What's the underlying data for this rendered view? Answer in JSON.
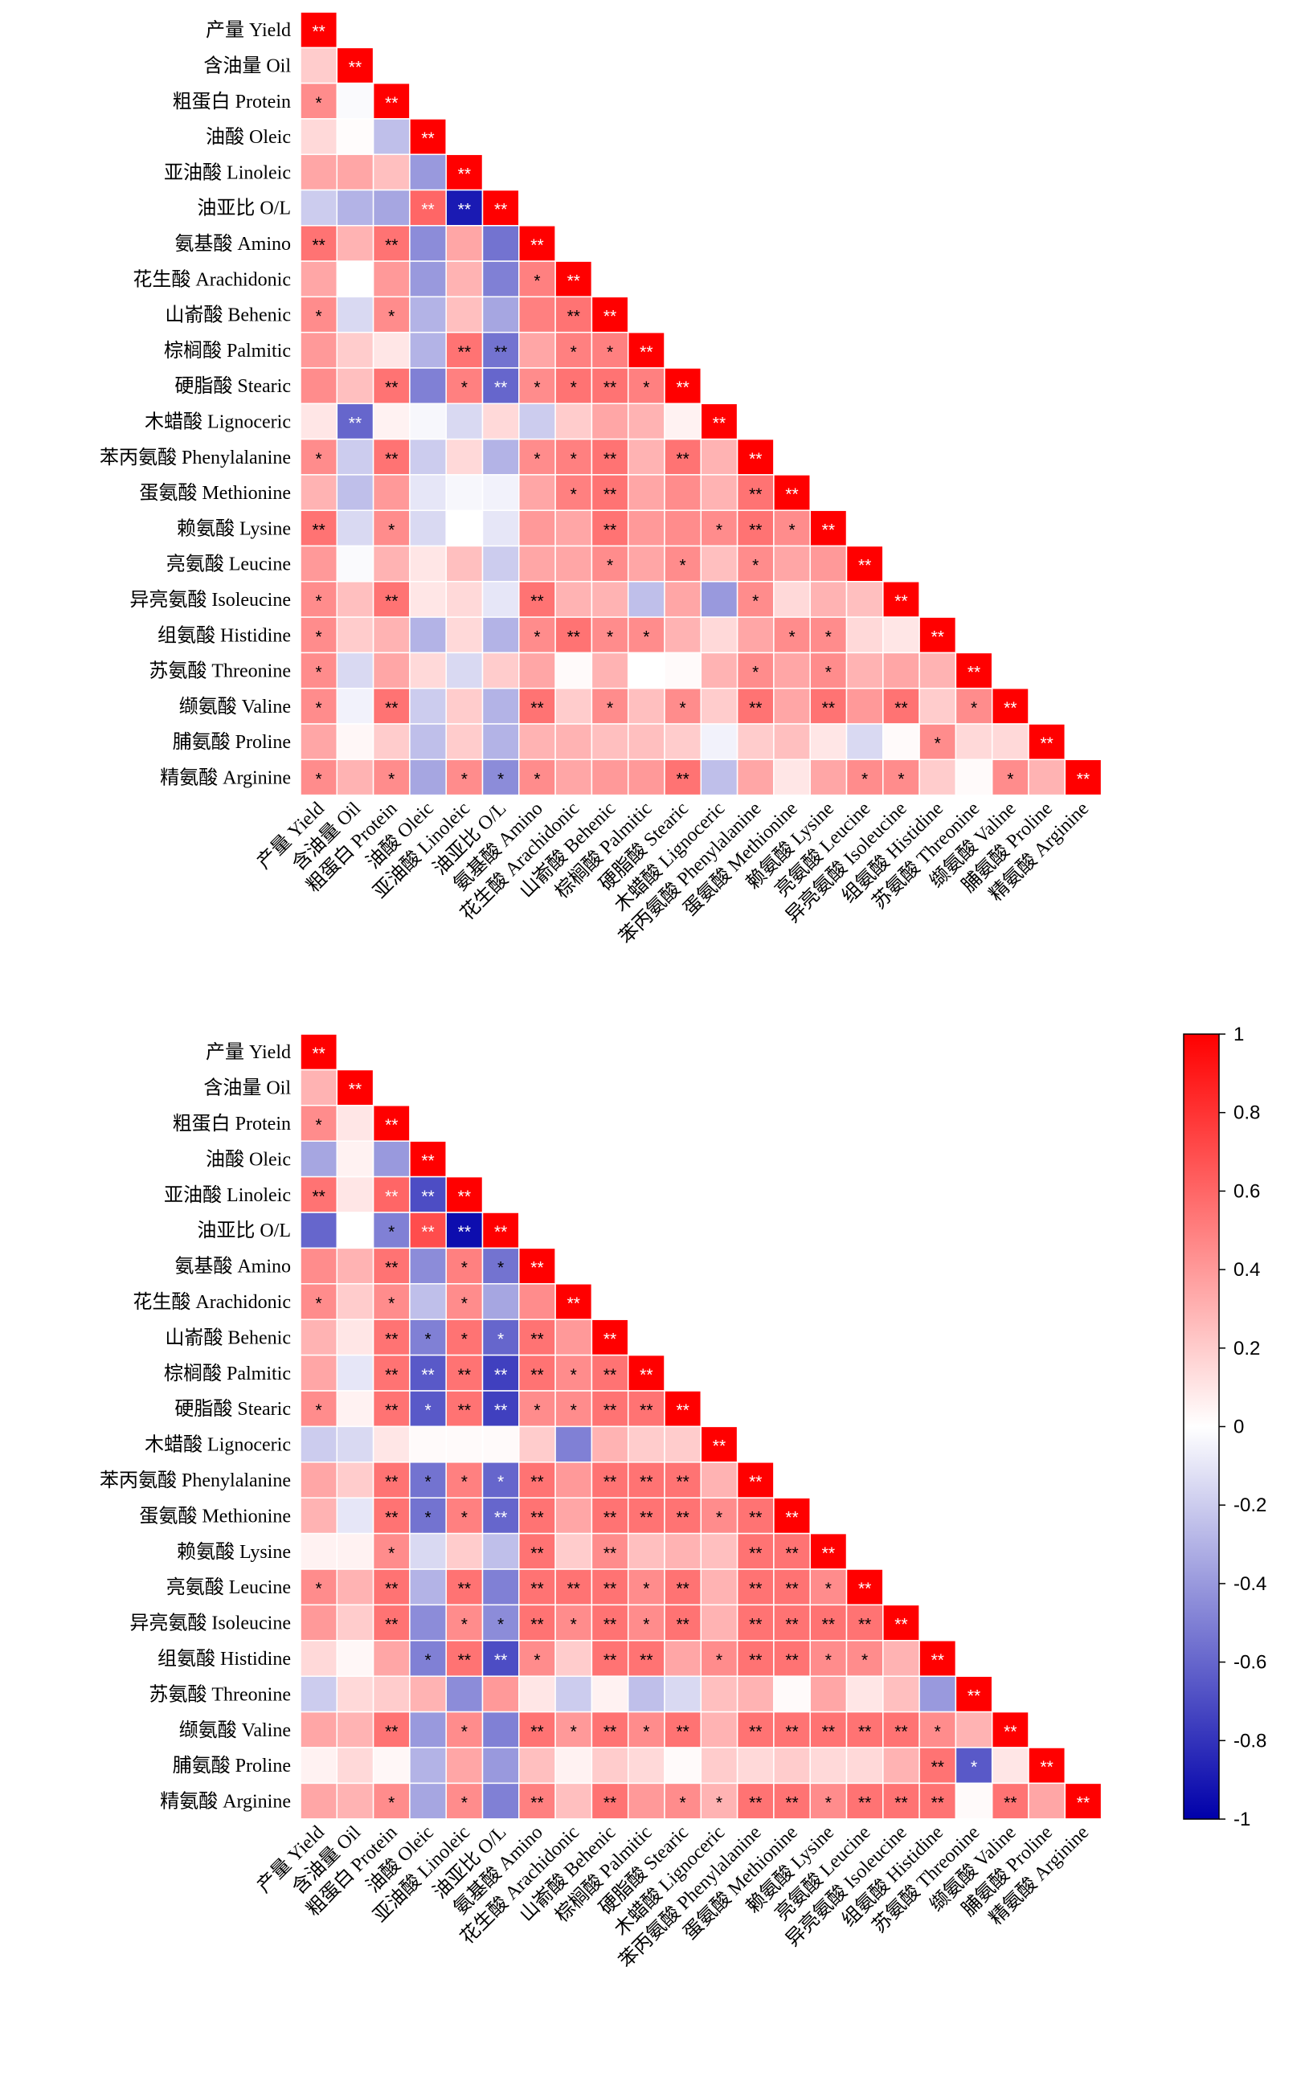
{
  "chart_data": [
    {
      "type": "heatmap",
      "variables": [
        "产量 Yield",
        "含油量 Oil",
        "粗蛋白 Protein",
        "油酸 Oleic",
        "亚油酸 Linoleic",
        "油亚比 O/L",
        "氨基酸 Amino",
        "花生酸 Arachidonic",
        "山嵛酸 Behenic",
        "棕榈酸 Palmitic",
        "硬脂酸 Stearic",
        "木蜡酸 Lignoceric",
        "苯丙氨酸 Phenylalanine",
        "蛋氨酸 Methionine",
        "赖氨酸 Lysine",
        "亮氨酸 Leucine",
        "异亮氨酸 Isoleucine",
        "组氨酸 Histidine",
        "苏氨酸 Threonine",
        "缬氨酸 Valine",
        "脯氨酸 Proline",
        "精氨酸 Arginine"
      ],
      "values": [
        [
          1
        ],
        [
          0.2,
          1
        ],
        [
          0.45,
          -0.02,
          1
        ],
        [
          0.15,
          0.01,
          -0.25,
          1
        ],
        [
          0.35,
          0.35,
          0.25,
          -0.4,
          1
        ],
        [
          -0.2,
          -0.3,
          -0.35,
          0.6,
          -0.9,
          1
        ],
        [
          0.55,
          0.3,
          0.55,
          -0.45,
          0.35,
          -0.55,
          1
        ],
        [
          0.35,
          0,
          0.4,
          -0.4,
          0.3,
          -0.5,
          0.5,
          1
        ],
        [
          0.45,
          -0.15,
          0.45,
          -0.3,
          0.25,
          -0.35,
          0.5,
          0.55,
          1
        ],
        [
          0.4,
          0.2,
          0.1,
          -0.3,
          0.55,
          -0.55,
          0.35,
          0.5,
          0.5,
          1
        ],
        [
          0.45,
          0.25,
          0.55,
          -0.5,
          0.5,
          -0.6,
          0.45,
          0.55,
          0.55,
          0.5,
          1
        ],
        [
          0.1,
          -0.6,
          0.05,
          -0.03,
          -0.15,
          0.15,
          -0.2,
          0.2,
          0.35,
          0.3,
          0.05,
          1
        ],
        [
          0.45,
          -0.2,
          0.55,
          -0.2,
          0.15,
          -0.3,
          0.45,
          0.5,
          0.55,
          0.3,
          0.55,
          0.3,
          1
        ],
        [
          0.3,
          -0.25,
          0.4,
          -0.1,
          -0.03,
          -0.05,
          0.35,
          0.5,
          0.55,
          0.35,
          0.45,
          0.3,
          0.55,
          1
        ],
        [
          0.55,
          -0.15,
          0.45,
          -0.15,
          0,
          -0.1,
          0.4,
          0.35,
          0.55,
          0.4,
          0.45,
          0.45,
          0.55,
          0.45,
          1
        ],
        [
          0.4,
          -0.02,
          0.3,
          0.1,
          0.25,
          -0.2,
          0.35,
          0.35,
          0.45,
          0.35,
          0.45,
          0.25,
          0.45,
          0.35,
          0.4,
          1
        ],
        [
          0.45,
          0.25,
          0.55,
          0.1,
          0.15,
          -0.1,
          0.55,
          0.3,
          0.3,
          -0.25,
          0.35,
          -0.4,
          0.45,
          0.15,
          0.3,
          0.25,
          1
        ],
        [
          0.45,
          0.2,
          0.3,
          -0.3,
          0.15,
          -0.3,
          0.45,
          0.55,
          0.45,
          0.45,
          0.3,
          0.15,
          0.35,
          0.45,
          0.45,
          0.15,
          0.1,
          1
        ],
        [
          0.45,
          -0.15,
          0.35,
          0.15,
          -0.15,
          0.2,
          0.35,
          0.02,
          0.3,
          0,
          0.02,
          0.3,
          0.45,
          0.35,
          0.45,
          0.3,
          0.35,
          0.3,
          1
        ],
        [
          0.45,
          -0.05,
          0.55,
          -0.2,
          0.2,
          -0.3,
          0.55,
          0.2,
          0.45,
          0.25,
          0.45,
          0.2,
          0.55,
          0.35,
          0.55,
          0.4,
          0.55,
          0.2,
          0.45,
          1
        ],
        [
          0.35,
          0.03,
          0.2,
          -0.25,
          0.2,
          -0.3,
          0.3,
          0.3,
          0.25,
          0.25,
          0.2,
          -0.05,
          0.2,
          0.25,
          0.1,
          -0.15,
          0.02,
          0.45,
          0.15,
          0.15,
          1
        ],
        [
          0.45,
          0.3,
          0.45,
          -0.35,
          0.45,
          -0.45,
          0.45,
          0.35,
          0.4,
          0.4,
          0.55,
          -0.25,
          0.35,
          0.1,
          0.35,
          0.45,
          0.45,
          0.2,
          0.02,
          0.45,
          0.3,
          1
        ]
      ],
      "significance": [
        [
          "**"
        ],
        [
          "",
          "**"
        ],
        [
          "*",
          "",
          "**"
        ],
        [
          "",
          "",
          "",
          "**"
        ],
        [
          "",
          "",
          "",
          "",
          "**"
        ],
        [
          "",
          "",
          "",
          "**",
          "**",
          "**"
        ],
        [
          "**",
          "",
          "**",
          "",
          "",
          "",
          "**"
        ],
        [
          "",
          "",
          "",
          "",
          "",
          "",
          "*",
          "**"
        ],
        [
          "*",
          "",
          "*",
          "",
          "",
          "",
          "",
          "**",
          "**"
        ],
        [
          "",
          "",
          "",
          "",
          "**",
          "**",
          "",
          "*",
          "*",
          "**"
        ],
        [
          "",
          "",
          "**",
          "",
          "*",
          "**",
          "*",
          "*",
          "**",
          "*",
          "**"
        ],
        [
          "",
          "**",
          "",
          "",
          "",
          "",
          "",
          "",
          "",
          "",
          "",
          "**"
        ],
        [
          "*",
          "",
          "**",
          "",
          "",
          "",
          "*",
          "*",
          "**",
          "",
          "**",
          "",
          "**"
        ],
        [
          "",
          "",
          "",
          "",
          "",
          "",
          "",
          "*",
          "**",
          "",
          "",
          "",
          "**",
          "**"
        ],
        [
          "**",
          "",
          "*",
          "",
          "",
          "",
          "",
          "",
          "**",
          "",
          "",
          "*",
          "**",
          "*",
          "**"
        ],
        [
          "",
          "",
          "",
          "",
          "",
          "",
          "",
          "",
          "*",
          "",
          "*",
          "",
          "*",
          "",
          "",
          "**"
        ],
        [
          "*",
          "",
          "**",
          "",
          "",
          "",
          "**",
          "",
          "",
          "",
          "",
          "",
          "*",
          "",
          "",
          "",
          "**"
        ],
        [
          "*",
          "",
          "",
          "",
          "",
          "",
          "*",
          "**",
          "*",
          "*",
          "",
          "",
          "",
          "*",
          "*",
          "",
          "",
          "**"
        ],
        [
          "*",
          "",
          "",
          "",
          "",
          "",
          "",
          "",
          "",
          "",
          "",
          "",
          "*",
          "",
          "*",
          "",
          "",
          "",
          "**"
        ],
        [
          "*",
          "",
          "**",
          "",
          "",
          "",
          "**",
          "",
          "*",
          "",
          "*",
          "",
          "**",
          "",
          "**",
          "",
          "**",
          "",
          "*",
          "**"
        ],
        [
          "",
          "",
          "",
          "",
          "",
          "",
          "",
          "",
          "",
          "",
          "",
          "",
          "",
          "",
          "",
          "",
          "",
          "*",
          "",
          "",
          "**"
        ],
        [
          "*",
          "",
          "*",
          "",
          "*",
          "*",
          "*",
          "",
          "",
          "",
          "**",
          "",
          "",
          "",
          "",
          "*",
          "*",
          "",
          "",
          "*",
          "",
          "**"
        ]
      ]
    },
    {
      "type": "heatmap",
      "variables": [
        "产量 Yield",
        "含油量 Oil",
        "粗蛋白 Protein",
        "油酸 Oleic",
        "亚油酸 Linoleic",
        "油亚比 O/L",
        "氨基酸 Amino",
        "花生酸 Arachidonic",
        "山嵛酸 Behenic",
        "棕榈酸 Palmitic",
        "硬脂酸 Stearic",
        "木蜡酸 Lignoceric",
        "苯丙氨酸 Phenylalanine",
        "蛋氨酸 Methionine",
        "赖氨酸 Lysine",
        "亮氨酸 Leucine",
        "异亮氨酸 Isoleucine",
        "组氨酸 Histidine",
        "苏氨酸 Threonine",
        "缬氨酸 Valine",
        "脯氨酸 Proline",
        "精氨酸 Arginine"
      ],
      "values": [
        [
          1
        ],
        [
          0.3,
          1
        ],
        [
          0.45,
          0.1,
          1
        ],
        [
          -0.35,
          0.05,
          -0.4,
          1
        ],
        [
          0.55,
          0.1,
          0.6,
          -0.7,
          1
        ],
        [
          -0.6,
          0,
          -0.5,
          0.7,
          -0.95,
          1
        ],
        [
          0.45,
          0.3,
          0.55,
          -0.45,
          0.5,
          -0.55,
          1
        ],
        [
          0.45,
          0.2,
          0.45,
          -0.25,
          0.45,
          -0.35,
          0.45,
          1
        ],
        [
          0.3,
          0.1,
          0.55,
          -0.5,
          0.55,
          -0.6,
          0.55,
          0.4,
          1
        ],
        [
          0.35,
          -0.1,
          0.55,
          -0.65,
          0.55,
          -0.75,
          0.55,
          0.45,
          0.55,
          1
        ],
        [
          0.45,
          0.05,
          0.55,
          -0.65,
          0.55,
          -0.75,
          0.45,
          0.45,
          0.55,
          0.55,
          1
        ],
        [
          -0.2,
          -0.15,
          0.1,
          0.02,
          0.02,
          0.02,
          0.2,
          -0.5,
          0.3,
          0.2,
          0.2,
          1
        ],
        [
          0.35,
          0.2,
          0.55,
          -0.55,
          0.5,
          -0.6,
          0.55,
          0.4,
          0.55,
          0.55,
          0.55,
          0.3,
          1
        ],
        [
          0.3,
          -0.1,
          0.55,
          -0.55,
          0.5,
          -0.6,
          0.55,
          0.35,
          0.55,
          0.55,
          0.55,
          0.45,
          0.55,
          1
        ],
        [
          0.05,
          0.05,
          0.45,
          -0.15,
          0.2,
          -0.25,
          0.55,
          0.2,
          0.45,
          0.25,
          0.3,
          0.25,
          0.55,
          0.55,
          1
        ],
        [
          0.45,
          0.3,
          0.55,
          -0.3,
          0.55,
          -0.5,
          0.55,
          0.55,
          0.55,
          0.45,
          0.55,
          0.3,
          0.55,
          0.55,
          0.45,
          1
        ],
        [
          0.4,
          0.2,
          0.55,
          -0.45,
          0.45,
          -0.45,
          0.55,
          0.45,
          0.55,
          0.45,
          0.55,
          0.3,
          0.55,
          0.55,
          0.55,
          0.55,
          1
        ],
        [
          0.15,
          0.03,
          0.35,
          -0.5,
          0.55,
          -0.7,
          0.45,
          0.2,
          0.55,
          0.55,
          0.35,
          0.45,
          0.55,
          0.55,
          0.45,
          0.45,
          0.3,
          1
        ],
        [
          -0.2,
          0.15,
          0.2,
          0.3,
          -0.45,
          0.4,
          0.1,
          -0.2,
          0.05,
          -0.25,
          -0.15,
          0.25,
          0.3,
          0.02,
          0.35,
          0.1,
          0.25,
          -0.4,
          1
        ],
        [
          0.35,
          0.3,
          0.55,
          -0.4,
          0.45,
          -0.5,
          0.55,
          0.4,
          0.55,
          0.45,
          0.55,
          0.3,
          0.55,
          0.55,
          0.55,
          0.55,
          0.55,
          0.45,
          0.3,
          1
        ],
        [
          0.05,
          0.15,
          0.03,
          -0.3,
          0.35,
          -0.4,
          0.25,
          0.05,
          0.2,
          0.15,
          0.02,
          0.2,
          0.15,
          0.2,
          0.15,
          0.15,
          0.3,
          0.55,
          -0.65,
          0.1,
          1
        ],
        [
          0.35,
          0.3,
          0.45,
          -0.35,
          0.45,
          -0.5,
          0.5,
          0.25,
          0.55,
          0.4,
          0.45,
          0.3,
          0.55,
          0.55,
          0.45,
          0.55,
          0.55,
          0.55,
          0.02,
          0.55,
          0.35,
          1
        ]
      ],
      "significance": [
        [
          "**"
        ],
        [
          "",
          "**"
        ],
        [
          "*",
          "",
          "**"
        ],
        [
          "",
          "",
          "",
          "**"
        ],
        [
          "**",
          "",
          "**",
          "**",
          "**"
        ],
        [
          "",
          "",
          "*",
          "**",
          "**",
          "**"
        ],
        [
          "",
          "",
          "**",
          "",
          "*",
          "*",
          "**"
        ],
        [
          "*",
          "",
          "*",
          "",
          "*",
          "",
          "",
          "**"
        ],
        [
          "",
          "",
          "**",
          "*",
          "*",
          "*",
          "**",
          "",
          "**"
        ],
        [
          "",
          "",
          "**",
          "**",
          "**",
          "**",
          "**",
          "*",
          "**",
          "**"
        ],
        [
          "*",
          "",
          "**",
          "*",
          "**",
          "**",
          "*",
          "*",
          "**",
          "**",
          "**"
        ],
        [
          "",
          "",
          "",
          "",
          "",
          "",
          "",
          "",
          "",
          "",
          "",
          "**"
        ],
        [
          "",
          "",
          "**",
          "*",
          "*",
          "*",
          "**",
          "",
          "**",
          "**",
          "**",
          "",
          "**"
        ],
        [
          "",
          "",
          "**",
          "*",
          "*",
          "**",
          "**",
          "",
          "**",
          "**",
          "**",
          "*",
          "**",
          "**"
        ],
        [
          "",
          "",
          "*",
          "",
          "",
          "",
          "**",
          "",
          "**",
          "",
          "",
          "",
          "**",
          "**",
          "**"
        ],
        [
          "*",
          "",
          "**",
          "",
          "**",
          "",
          "**",
          "**",
          "**",
          "*",
          "**",
          "",
          "**",
          "**",
          "*",
          "**"
        ],
        [
          "",
          "",
          "**",
          "",
          "*",
          "*",
          "**",
          "*",
          "**",
          "*",
          "**",
          "",
          "**",
          "**",
          "**",
          "**",
          "**"
        ],
        [
          "",
          "",
          "",
          "*",
          "**",
          "**",
          "*",
          "",
          "**",
          "**",
          "",
          "*",
          "**",
          "**",
          "*",
          "*",
          "",
          "**"
        ],
        [
          "",
          "",
          "",
          "",
          "",
          "",
          "",
          "",
          "",
          "",
          "",
          "",
          "",
          "",
          "",
          "",
          "",
          "",
          "**"
        ],
        [
          "",
          "",
          "**",
          "",
          "*",
          "",
          "**",
          "*",
          "**",
          "*",
          "**",
          "",
          "**",
          "**",
          "**",
          "**",
          "**",
          "*",
          "",
          "**"
        ],
        [
          "",
          "",
          "",
          "",
          "",
          "",
          "",
          "",
          "",
          "",
          "",
          "",
          "",
          "",
          "",
          "",
          "",
          "**",
          "*",
          "",
          "**"
        ],
        [
          "",
          "",
          "*",
          "",
          "*",
          "",
          "**",
          "",
          "**",
          "",
          "*",
          "*",
          "**",
          "**",
          "*",
          "**",
          "**",
          "**",
          "",
          "**",
          "",
          "**"
        ]
      ]
    }
  ],
  "colorbar": {
    "ticks": [
      "1",
      "0.8",
      "0.6",
      "0.4",
      "0.2",
      "0",
      "-0.2",
      "-0.4",
      "-0.6",
      "-0.8",
      "-1"
    ],
    "colors": {
      "positive": "#ff0000",
      "zero": "#ffffff",
      "negative": "#0000aa"
    }
  }
}
